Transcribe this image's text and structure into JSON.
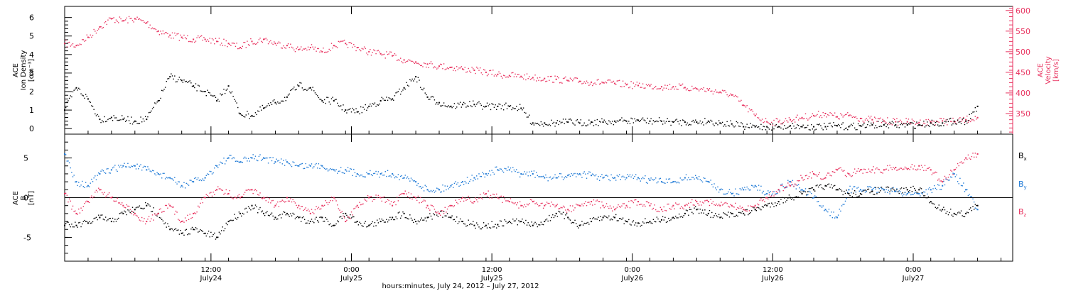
{
  "colors": {
    "black": "#000000",
    "pink": "#e8325f",
    "blue": "#1f7ad6"
  },
  "chart_data": [
    {
      "type": "scatter",
      "panel": "top",
      "ylabel_left": [
        "ACE",
        "Ion Density",
        "[cm⁻³]"
      ],
      "ylabel_right": [
        "ACE",
        "Velocity",
        "[km/s]"
      ],
      "y_ticks_left": [
        "0",
        "1",
        "2",
        "3",
        "4",
        "5",
        "6"
      ],
      "y_ticks_right": [
        "350",
        "400",
        "450",
        "500",
        "550",
        "600"
      ],
      "ylim_left": [
        -0.3,
        6.6
      ],
      "ylim_right": [
        300,
        610
      ],
      "xlim_hours": [
        0,
        81
      ],
      "series": [
        {
          "key": "density",
          "axis": "left",
          "color": "pink_black",
          "name": "",
          "x": [
            0,
            1,
            2,
            3,
            4,
            5,
            6,
            7,
            8,
            9,
            10,
            11,
            12,
            13,
            14,
            15,
            16,
            17,
            18,
            19,
            20,
            21,
            22,
            23,
            24,
            25,
            26,
            27,
            28,
            29,
            30,
            31,
            32,
            33,
            34,
            35,
            36,
            37,
            38,
            39,
            40,
            41,
            42,
            43,
            44,
            45,
            46,
            47,
            48,
            49,
            50,
            51,
            52,
            53,
            54,
            55,
            56,
            57,
            58,
            59,
            60,
            61,
            62,
            63,
            64,
            65,
            66,
            67,
            68,
            69,
            70,
            71,
            72,
            73,
            74,
            75,
            76,
            77,
            78
          ],
          "y": [
            1.0,
            2.2,
            1.6,
            0.5,
            0.6,
            0.5,
            0.4,
            0.5,
            1.5,
            2.8,
            2.6,
            2.3,
            2.0,
            1.5,
            2.3,
            0.8,
            0.7,
            1.1,
            1.4,
            1.7,
            2.3,
            2.2,
            1.5,
            1.5,
            1.0,
            0.9,
            1.2,
            1.5,
            1.6,
            2.2,
            2.8,
            1.7,
            1.4,
            1.2,
            1.3,
            1.3,
            1.2,
            1.2,
            1.2,
            1.1,
            0.3,
            0.3,
            0.3,
            0.35,
            0.3,
            0.35,
            0.35,
            0.4,
            0.4,
            0.45,
            0.4,
            0.4,
            0.35,
            0.35,
            0.35,
            0.4,
            0.3,
            0.25,
            0.1,
            0.1,
            0.1,
            0.1,
            0.15,
            0.1,
            0.1,
            0.1,
            0.15,
            0.1,
            0.15,
            0.2,
            0.2,
            0.2,
            0.2,
            0.2,
            0.3,
            0.3,
            0.4,
            0.4,
            1.2
          ]
        },
        {
          "key": "velocity",
          "axis": "right",
          "color": "pink",
          "name": "",
          "x": [
            0,
            1,
            2,
            3,
            4,
            5,
            6,
            7,
            8,
            9,
            10,
            11,
            12,
            13,
            14,
            15,
            16,
            17,
            18,
            19,
            20,
            21,
            22,
            23,
            24,
            25,
            26,
            27,
            28,
            29,
            30,
            31,
            32,
            33,
            34,
            35,
            36,
            37,
            38,
            39,
            40,
            41,
            42,
            43,
            44,
            45,
            46,
            47,
            48,
            49,
            50,
            51,
            52,
            53,
            54,
            55,
            56,
            57,
            58,
            59,
            60,
            61,
            62,
            63,
            64,
            65,
            66,
            67,
            68,
            69,
            70,
            71,
            72,
            73,
            74,
            75,
            76,
            77,
            78
          ],
          "y": [
            520,
            515,
            535,
            560,
            580,
            575,
            580,
            570,
            550,
            540,
            535,
            530,
            530,
            525,
            520,
            510,
            525,
            530,
            520,
            515,
            505,
            510,
            500,
            515,
            520,
            510,
            500,
            495,
            490,
            480,
            475,
            470,
            465,
            462,
            458,
            455,
            450,
            445,
            442,
            440,
            437,
            435,
            433,
            430,
            428,
            426,
            425,
            423,
            420,
            418,
            417,
            415,
            415,
            413,
            410,
            407,
            402,
            395,
            370,
            345,
            330,
            330,
            335,
            340,
            345,
            350,
            342,
            345,
            338,
            335,
            332,
            330,
            330,
            328,
            330,
            332,
            330,
            335,
            340
          ]
        }
      ]
    },
    {
      "type": "scatter",
      "panel": "bottom",
      "ylabel_left": [
        "ACE",
        "B",
        "[nT]"
      ],
      "y_ticks_left": [
        "-5",
        "0",
        "5"
      ],
      "ylim_left": [
        -8,
        8
      ],
      "xlim_hours": [
        0,
        81
      ],
      "legend": [
        {
          "label": "B",
          "sub": "x",
          "color": "black"
        },
        {
          "label": "B",
          "sub": "y",
          "color": "blue"
        },
        {
          "label": "B",
          "sub": "z",
          "color": "pink"
        }
      ],
      "series": [
        {
          "key": "Bx",
          "color": "black",
          "name": "Bx",
          "x": [
            0,
            1,
            2,
            3,
            4,
            5,
            6,
            7,
            8,
            9,
            10,
            11,
            12,
            13,
            14,
            15,
            16,
            17,
            18,
            19,
            20,
            21,
            22,
            23,
            24,
            25,
            26,
            27,
            28,
            29,
            30,
            31,
            32,
            33,
            34,
            35,
            36,
            37,
            38,
            39,
            40,
            41,
            42,
            43,
            44,
            45,
            46,
            47,
            48,
            49,
            50,
            51,
            52,
            53,
            54,
            55,
            56,
            57,
            58,
            59,
            60,
            61,
            62,
            63,
            64,
            65,
            66,
            67,
            68,
            69,
            70,
            71,
            72,
            73,
            74,
            75,
            76,
            77,
            78
          ],
          "y": [
            -3.5,
            -3.5,
            -3.2,
            -2.5,
            -3.0,
            -2.0,
            -1.5,
            -1.0,
            -2.0,
            -4.0,
            -4.5,
            -4.0,
            -4.5,
            -5.0,
            -3.0,
            -2.0,
            -1.0,
            -2.0,
            -2.5,
            -2.0,
            -2.5,
            -3.0,
            -2.5,
            -3.5,
            -2.0,
            -3.0,
            -3.5,
            -3.0,
            -2.5,
            -2.0,
            -3.0,
            -2.5,
            -2.0,
            -2.5,
            -3.0,
            -3.5,
            -3.5,
            -3.4,
            -3.0,
            -3.0,
            -3.5,
            -3.0,
            -2.0,
            -2.5,
            -3.5,
            -3.0,
            -2.5,
            -2.5,
            -3.0,
            -3.2,
            -3.0,
            -2.8,
            -2.5,
            -2.0,
            -1.5,
            -2.0,
            -2.5,
            -2.0,
            -2.0,
            -1.5,
            -1.0,
            -0.5,
            0.0,
            0.5,
            1.0,
            1.5,
            1.0,
            0.5,
            0.5,
            0.8,
            1.0,
            0.8,
            1.0,
            1.0,
            -0.5,
            -1.5,
            -2.0,
            -2.0,
            -1.0
          ]
        },
        {
          "key": "By",
          "color": "blue",
          "name": "By",
          "x": [
            0,
            1,
            2,
            3,
            4,
            5,
            6,
            7,
            8,
            9,
            10,
            11,
            12,
            13,
            14,
            15,
            16,
            17,
            18,
            19,
            20,
            21,
            22,
            23,
            24,
            25,
            26,
            27,
            28,
            29,
            30,
            31,
            32,
            33,
            34,
            35,
            36,
            37,
            38,
            39,
            40,
            41,
            42,
            43,
            44,
            45,
            46,
            47,
            48,
            49,
            50,
            51,
            52,
            53,
            54,
            55,
            56,
            57,
            58,
            59,
            60,
            61,
            62,
            63,
            64,
            65,
            66,
            67,
            68,
            69,
            70,
            71,
            72,
            73,
            74,
            75,
            76,
            77,
            78
          ],
          "y": [
            5.5,
            2.0,
            1.5,
            3.0,
            3.5,
            4.0,
            4.0,
            3.5,
            3.0,
            2.5,
            1.5,
            2.0,
            2.5,
            4.0,
            5.0,
            4.5,
            5.0,
            5.0,
            4.5,
            4.5,
            4.0,
            4.0,
            4.0,
            3.5,
            3.5,
            3.0,
            3.0,
            3.0,
            3.0,
            2.5,
            2.0,
            1.0,
            1.0,
            1.5,
            2.0,
            2.5,
            3.0,
            3.5,
            3.5,
            3.0,
            3.0,
            2.5,
            2.5,
            2.8,
            3.0,
            2.8,
            2.5,
            2.5,
            2.5,
            2.5,
            2.2,
            2.0,
            2.0,
            2.5,
            2.5,
            2.0,
            1.0,
            0.5,
            1.0,
            1.5,
            0.5,
            1.0,
            2.0,
            1.0,
            0.0,
            -1.5,
            -2.5,
            1.0,
            1.0,
            1.0,
            1.0,
            0.8,
            0.5,
            0.5,
            1.0,
            1.5,
            3.0,
            1.0,
            -1.5
          ]
        },
        {
          "key": "Bz",
          "color": "pink",
          "name": "Bz",
          "x": [
            0,
            1,
            2,
            3,
            4,
            5,
            6,
            7,
            8,
            9,
            10,
            11,
            12,
            13,
            14,
            15,
            16,
            17,
            18,
            19,
            20,
            21,
            22,
            23,
            24,
            25,
            26,
            27,
            28,
            29,
            30,
            31,
            32,
            33,
            34,
            35,
            36,
            37,
            38,
            39,
            40,
            41,
            42,
            43,
            44,
            45,
            46,
            47,
            48,
            49,
            50,
            51,
            52,
            53,
            54,
            55,
            56,
            57,
            58,
            59,
            60,
            61,
            62,
            63,
            64,
            65,
            66,
            67,
            68,
            69,
            70,
            71,
            72,
            73,
            74,
            75,
            76,
            77,
            78
          ],
          "y": [
            0.5,
            -2.0,
            -0.5,
            1.0,
            0.0,
            -1.0,
            -2.0,
            -3.0,
            -2.0,
            -1.0,
            -3.0,
            -2.0,
            0.0,
            1.0,
            0.5,
            0.0,
            1.0,
            0.0,
            -1.0,
            0.0,
            -1.0,
            -2.0,
            -1.0,
            0.0,
            -3.0,
            -1.0,
            0.0,
            0.0,
            -1.0,
            0.5,
            0.0,
            -1.0,
            -2.0,
            -1.0,
            0.0,
            -0.5,
            0.5,
            0.0,
            -0.5,
            -1.0,
            -0.5,
            -1.0,
            -1.0,
            -1.5,
            -1.0,
            -0.5,
            -1.0,
            -1.5,
            -1.0,
            -0.5,
            -1.0,
            -1.5,
            -1.0,
            -1.0,
            -0.5,
            -0.5,
            -1.0,
            -1.0,
            -1.5,
            -1.0,
            0.0,
            1.0,
            1.5,
            2.5,
            3.0,
            2.5,
            3.5,
            3.0,
            3.5,
            3.5,
            3.5,
            3.8,
            3.6,
            4.0,
            3.5,
            2.0,
            3.5,
            5.0,
            5.5
          ]
        }
      ]
    }
  ],
  "x_ticks": [
    {
      "time": "12:00",
      "date": "July24"
    },
    {
      "time": "0:00",
      "date": "July25"
    },
    {
      "time": "12:00",
      "date": "July25"
    },
    {
      "time": "0:00",
      "date": "July26"
    },
    {
      "time": "12:00",
      "date": "July26"
    },
    {
      "time": "0:00",
      "date": "July27"
    }
  ],
  "xlabel": "hours:minutes, July 24, 2012 – July 27, 2012"
}
